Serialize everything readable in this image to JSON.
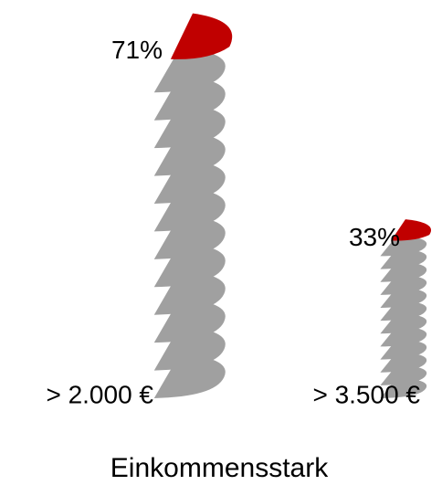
{
  "chart_data": {
    "type": "pie-stack",
    "title": "Einkommensstark",
    "categories": [
      "> 2.000 €",
      "> 3.500 €"
    ],
    "values": [
      71,
      33
    ],
    "value_labels": [
      "71%",
      "33%"
    ],
    "color": "#a0a0a0",
    "highlight_color": "#c00000"
  }
}
